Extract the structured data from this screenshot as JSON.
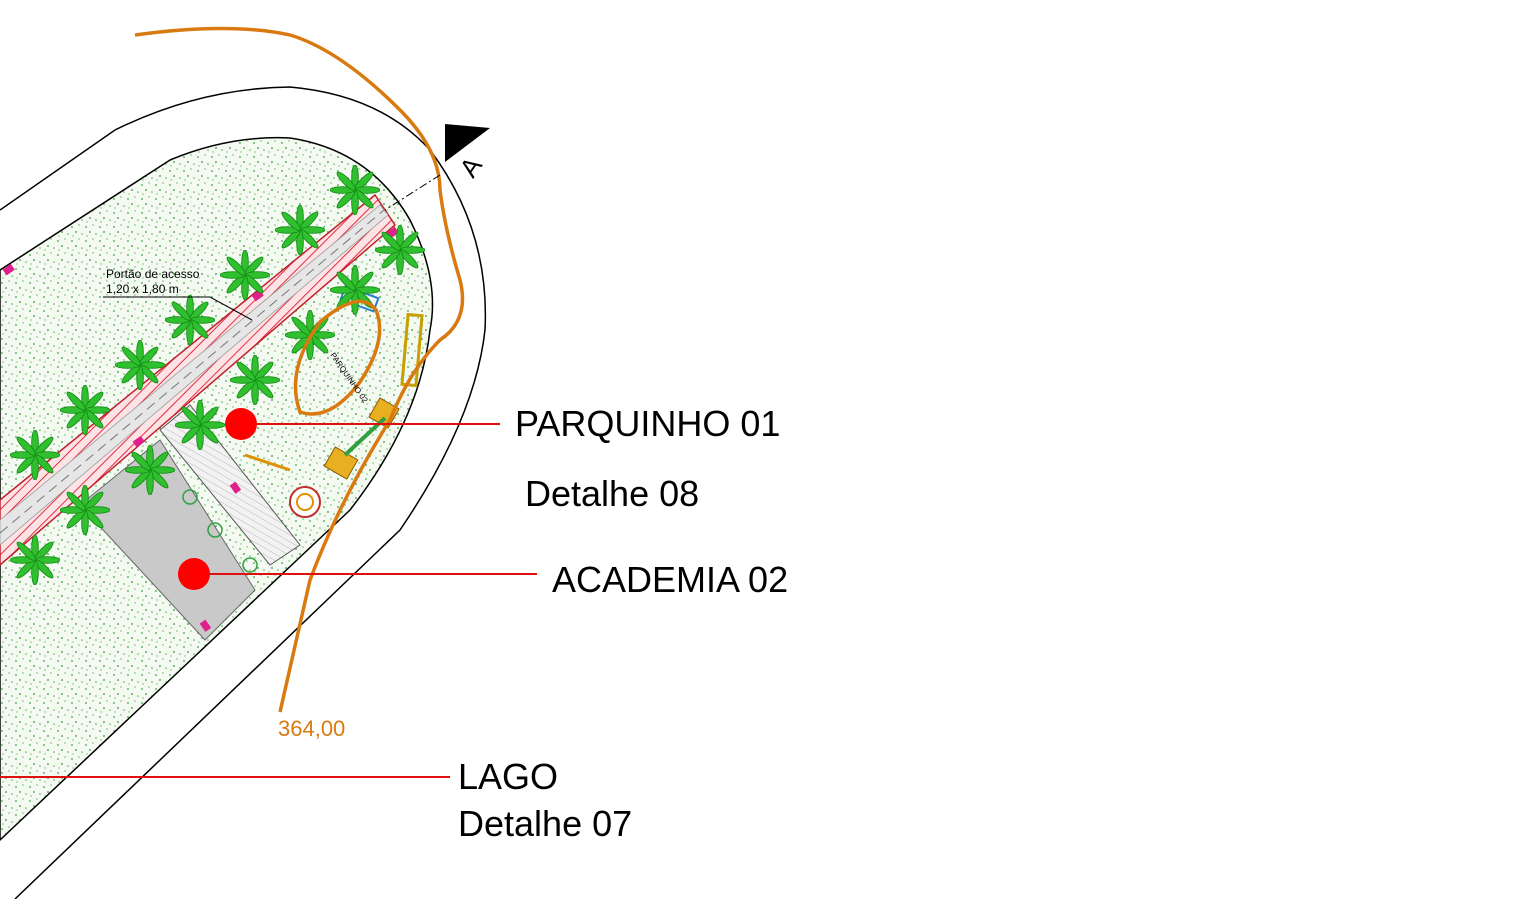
{
  "section_marker": "A",
  "gate": {
    "title": "Portão de acesso",
    "size": "1,20 x 1,80 m"
  },
  "playground_label": "PARQUINHO 02",
  "contour_label": "364,00",
  "callouts": [
    {
      "title": "PARQUINHO 01",
      "detail": "Detalhe 08"
    },
    {
      "title": "ACADEMIA 02"
    },
    {
      "title": "LAGO",
      "detail": "Detalhe 07"
    }
  ]
}
